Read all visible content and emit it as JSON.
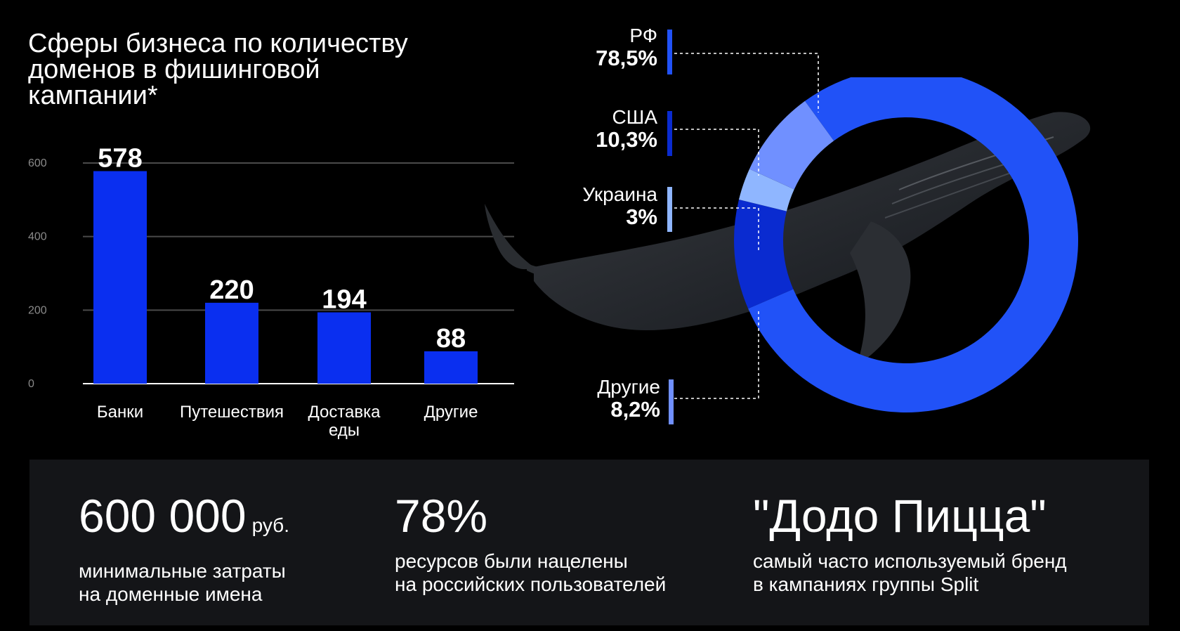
{
  "title": "Сферы бизнеса по количеству\nдоменов в фишинговой\nкампании*",
  "chart_data": [
    {
      "type": "bar",
      "categories": [
        "Банки",
        "Путешествия",
        "Доставка\nеды",
        "Другие"
      ],
      "values": [
        578,
        220,
        194,
        88
      ],
      "data_labels": [
        "578",
        "220",
        "194",
        "88"
      ],
      "yticks": [
        0,
        200,
        400,
        600
      ],
      "ylim": [
        0,
        600
      ],
      "grid": true,
      "bar_color": "#0a2ff0"
    },
    {
      "type": "pie",
      "donut": true,
      "categories": [
        "РФ",
        "США",
        "Украина",
        "Другие"
      ],
      "values": [
        78.5,
        10.3,
        3.0,
        8.2
      ],
      "value_labels": [
        "78,5%",
        "10,3%",
        "3%",
        "8,2%"
      ],
      "colors": [
        "#2152f7",
        "#0a2bd0",
        "#8fb6ff",
        "#7090ff"
      ],
      "legend_position": "left"
    }
  ],
  "stats": [
    {
      "value": "600 000",
      "unit": "руб.",
      "desc": "минимальные затраты\nна доменные имена"
    },
    {
      "value": "78%",
      "unit": "",
      "desc": "ресурсов были нацелены\nна российских пользователей"
    },
    {
      "value": "\"Додо Пицца\"",
      "unit": "",
      "desc": "самый часто используемый бренд\nв  кампаниях группы Split"
    }
  ],
  "colors": {
    "background": "#000000",
    "panel": "#141518",
    "grid": "#4a4a4a"
  }
}
